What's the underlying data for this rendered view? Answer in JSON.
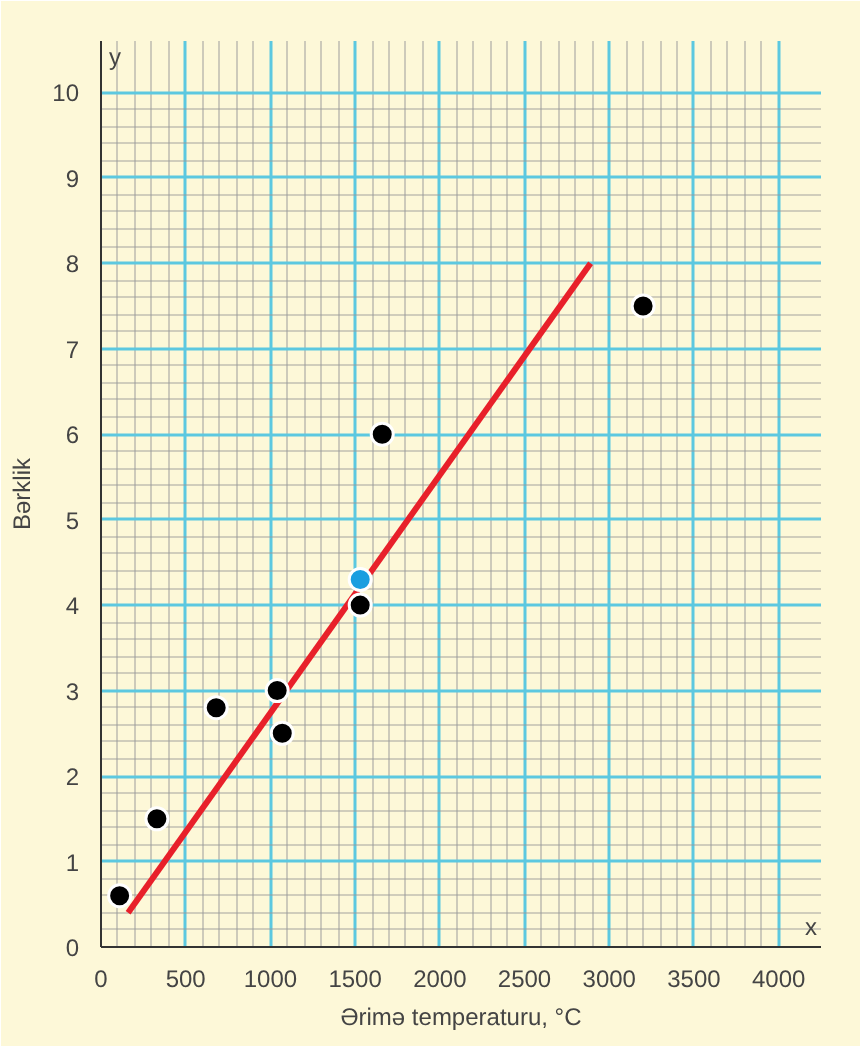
{
  "chart_data": {
    "type": "scatter",
    "xlabel": "Ərimə temperaturu, °C",
    "ylabel": "Bərklik",
    "annotations": [
      "x",
      "y"
    ],
    "xlim": [
      0,
      4250
    ],
    "ylim": [
      0,
      10.6
    ],
    "xticks": [
      0,
      500,
      1000,
      1500,
      2000,
      2500,
      3000,
      3500,
      4000
    ],
    "yticks": [
      0,
      1,
      2,
      3,
      4,
      5,
      6,
      7,
      8,
      9,
      10
    ],
    "grid": true,
    "marker": "circle",
    "series": [
      {
        "type": "line",
        "marker": "none",
        "color": "#e8202a",
        "x": [
          160,
          2890
        ],
        "values": [
          0.4,
          8.0
        ]
      },
      {
        "color": "#000000",
        "x": [
          110,
          330,
          680,
          1040,
          1070,
          1530,
          1660,
          3200
        ],
        "values": [
          0.6,
          1.5,
          2.8,
          3.0,
          2.5,
          4.0,
          6.0,
          7.5
        ]
      },
      {
        "color": "#1a9ee0",
        "x": [
          1530
        ],
        "values": [
          4.3
        ]
      }
    ]
  }
}
